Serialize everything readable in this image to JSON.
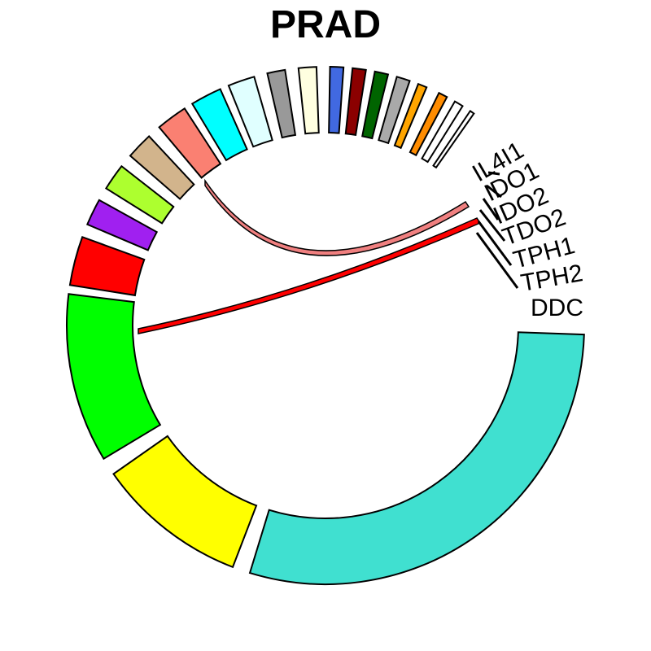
{
  "title": "PRAD",
  "sectors": [
    {
      "label": "DDC",
      "color": "#40E0D0"
    },
    {
      "label": "",
      "color": "#FFFF00"
    },
    {
      "label": "",
      "color": "#00FF00"
    },
    {
      "label": "",
      "color": "#FF0000"
    },
    {
      "label": "",
      "color": "#A020F0"
    },
    {
      "label": "",
      "color": "#ADFF2F"
    },
    {
      "label": "",
      "color": "#D2B48C"
    },
    {
      "label": "",
      "color": "#FA8072"
    },
    {
      "label": "",
      "color": "#00FFFF"
    },
    {
      "label": "",
      "color": "#E0FFFF"
    },
    {
      "label": "",
      "color": "#999999"
    },
    {
      "label": "",
      "color": "#FFFFE0"
    },
    {
      "label": "",
      "color": "#4169E1"
    },
    {
      "label": "",
      "color": "#8B0000"
    },
    {
      "label": "",
      "color": "#006400"
    },
    {
      "label": "",
      "color": "#A9A9A9"
    },
    {
      "label": "",
      "color": "#FFA500"
    },
    {
      "label": "",
      "color": "#FF8C00"
    },
    {
      "label": "",
      "color": "#FFFFFF"
    },
    {
      "label": "",
      "color": "#FFFFFF"
    }
  ],
  "side_labels": [
    "IL4I1",
    "IDO1",
    "IDO2",
    "TDO2",
    "TPH1",
    "TPH2",
    "DDC"
  ],
  "links": [
    {
      "from": "salmon-sector",
      "to": "tdo2-sector",
      "color": "#F08080"
    },
    {
      "from": "red-sector",
      "to": "tph1-sector",
      "color": "#FF0000"
    }
  ]
}
